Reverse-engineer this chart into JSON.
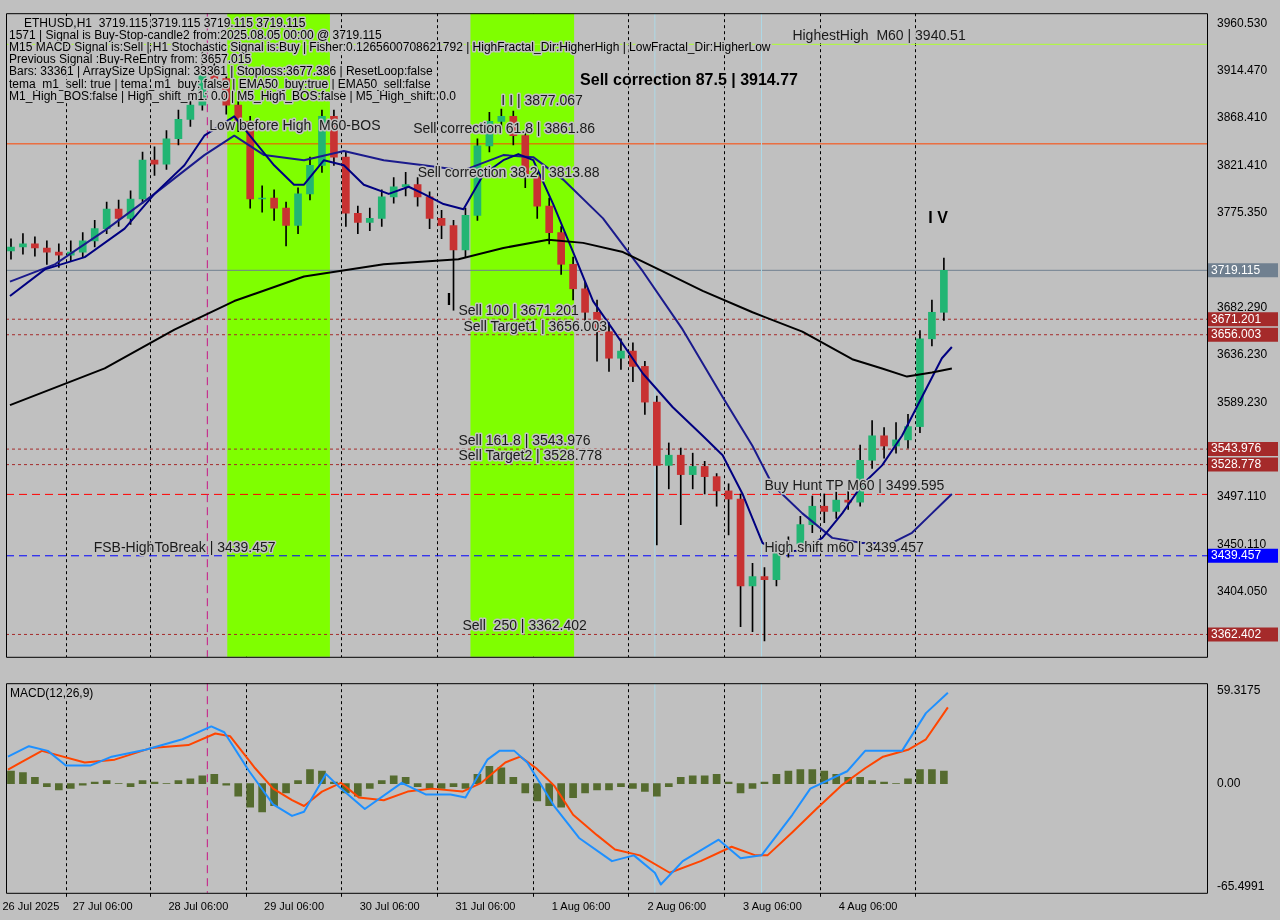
{
  "chart_data": [
    {
      "type": "candlestick",
      "title": "ETHUSD,H1  3719.115 3719.115 3719.115 3719.115",
      "x": [
        "2025-07-26T07:00",
        "2025-07-26T10:00",
        "2025-07-26T13:00",
        "2025-07-26T16:00",
        "2025-07-26T19:00",
        "2025-07-26T22:00",
        "2025-07-27T01:00",
        "2025-07-27T04:00",
        "2025-07-27T07:00",
        "2025-07-27T10:00",
        "2025-07-27T13:00",
        "2025-07-27T16:00",
        "2025-07-27T19:00",
        "2025-07-27T22:00",
        "2025-07-28T01:00",
        "2025-07-28T04:00",
        "2025-07-28T07:00",
        "2025-07-28T10:00",
        "2025-07-28T13:00",
        "2025-07-28T16:00",
        "2025-07-28T19:00",
        "2025-07-28T22:00",
        "2025-07-29T01:00",
        "2025-07-29T04:00",
        "2025-07-29T07:00",
        "2025-07-29T10:00",
        "2025-07-29T13:00",
        "2025-07-29T16:00",
        "2025-07-29T19:00",
        "2025-07-29T22:00",
        "2025-07-30T01:00",
        "2025-07-30T04:00",
        "2025-07-30T07:00",
        "2025-07-30T10:00",
        "2025-07-30T13:00",
        "2025-07-30T16:00",
        "2025-07-30T19:00",
        "2025-07-30T22:00",
        "2025-07-31T01:00",
        "2025-07-31T04:00",
        "2025-07-31T07:00",
        "2025-07-31T10:00",
        "2025-07-31T13:00",
        "2025-07-31T16:00",
        "2025-07-31T19:00",
        "2025-07-31T22:00",
        "2025-08-01T01:00",
        "2025-08-01T04:00",
        "2025-08-01T07:00",
        "2025-08-01T10:00",
        "2025-08-01T13:00",
        "2025-08-01T16:00",
        "2025-08-01T19:00",
        "2025-08-01T22:00",
        "2025-08-02T01:00",
        "2025-08-02T04:00",
        "2025-08-02T07:00",
        "2025-08-02T10:00",
        "2025-08-02T13:00",
        "2025-08-02T16:00",
        "2025-08-02T19:00",
        "2025-08-02T22:00",
        "2025-08-03T01:00",
        "2025-08-03T04:00",
        "2025-08-03T07:00",
        "2025-08-03T10:00",
        "2025-08-03T13:00",
        "2025-08-03T16:00",
        "2025-08-03T19:00",
        "2025-08-03T22:00",
        "2025-08-04T01:00",
        "2025-08-04T04:00",
        "2025-08-04T07:00",
        "2025-08-04T10:00",
        "2025-08-04T13:00",
        "2025-08-04T16:00",
        "2025-08-04T19:00",
        "2025-08-04T22:00",
        "2025-08-05T01:00"
      ],
      "ohlc": [
        [
          3738,
          3750,
          3730,
          3742
        ],
        [
          3742,
          3755,
          3735,
          3745
        ],
        [
          3745,
          3752,
          3733,
          3741
        ],
        [
          3741,
          3748,
          3725,
          3737
        ],
        [
          3737,
          3745,
          3722,
          3734
        ],
        [
          3734,
          3748,
          3728,
          3737
        ],
        [
          3737,
          3756,
          3732,
          3748
        ],
        [
          3748,
          3768,
          3742,
          3760
        ],
        [
          3760,
          3786,
          3755,
          3779
        ],
        [
          3779,
          3788,
          3762,
          3770
        ],
        [
          3770,
          3797,
          3764,
          3789
        ],
        [
          3789,
          3835,
          3785,
          3827
        ],
        [
          3827,
          3840,
          3812,
          3823
        ],
        [
          3823,
          3856,
          3818,
          3848
        ],
        [
          3848,
          3876,
          3842,
          3867
        ],
        [
          3867,
          3892,
          3860,
          3881
        ],
        [
          3881,
          3940.51,
          3876,
          3912
        ],
        [
          3912,
          3925,
          3895,
          3907
        ],
        [
          3907,
          3912,
          3872,
          3881
        ],
        [
          3881,
          3888,
          3855,
          3865
        ],
        [
          3865,
          3870,
          3780,
          3789
        ],
        [
          3789,
          3802,
          3776,
          3790
        ],
        [
          3790,
          3798,
          3768,
          3780
        ],
        [
          3780,
          3786,
          3743,
          3763
        ],
        [
          3763,
          3800,
          3755,
          3794
        ],
        [
          3794,
          3830,
          3788,
          3822
        ],
        [
          3822,
          3876,
          3815,
          3870
        ],
        [
          3870,
          3876,
          3822,
          3830
        ],
        [
          3830,
          3835,
          3762,
          3775
        ],
        [
          3775,
          3782,
          3755,
          3766
        ],
        [
          3766,
          3780,
          3758,
          3770
        ],
        [
          3770,
          3798,
          3762,
          3791
        ],
        [
          3791,
          3810,
          3785,
          3801
        ],
        [
          3801,
          3815,
          3792,
          3803
        ],
        [
          3803,
          3810,
          3782,
          3791
        ],
        [
          3791,
          3796,
          3760,
          3770
        ],
        [
          3770,
          3778,
          3750,
          3763
        ],
        [
          3763,
          3768,
          3680,
          3739
        ],
        [
          3739,
          3780,
          3732,
          3773
        ],
        [
          3773,
          3848,
          3768,
          3841
        ],
        [
          3841,
          3874,
          3835,
          3865
        ],
        [
          3865,
          3877.067,
          3858,
          3870
        ],
        [
          3870,
          3875,
          3842,
          3851
        ],
        [
          3851,
          3856,
          3800,
          3811
        ],
        [
          3811,
          3818,
          3770,
          3782
        ],
        [
          3782,
          3790,
          3745,
          3756
        ],
        [
          3756,
          3762,
          3715,
          3725
        ],
        [
          3725,
          3732,
          3690,
          3701
        ],
        [
          3701,
          3708,
          3665,
          3678
        ],
        [
          3678,
          3690,
          3630,
          3659
        ],
        [
          3659,
          3668,
          3620,
          3633
        ],
        [
          3633,
          3652,
          3622,
          3640
        ],
        [
          3640,
          3648,
          3610,
          3625
        ],
        [
          3625,
          3630,
          3578,
          3590
        ],
        [
          3590,
          3596,
          3450,
          3528
        ],
        [
          3528,
          3550,
          3505,
          3538
        ],
        [
          3538,
          3545,
          3470,
          3519
        ],
        [
          3519,
          3540,
          3505,
          3527
        ],
        [
          3527,
          3532,
          3500,
          3517
        ],
        [
          3517,
          3520,
          3488,
          3503
        ],
        [
          3503,
          3510,
          3460,
          3495
        ],
        [
          3495,
          3500,
          3370,
          3410
        ],
        [
          3410,
          3432,
          3365,
          3419
        ],
        [
          3419,
          3428,
          3356,
          3416
        ],
        [
          3416,
          3452,
          3410,
          3447
        ],
        [
          3447,
          3458,
          3438,
          3451
        ],
        [
          3451,
          3478,
          3445,
          3470
        ],
        [
          3470,
          3498,
          3462,
          3488
        ],
        [
          3488,
          3500,
          3472,
          3483
        ],
        [
          3483,
          3502,
          3476,
          3494
        ],
        [
          3494,
          3505,
          3485,
          3492
        ],
        [
          3492,
          3548,
          3488,
          3533
        ],
        [
          3533,
          3572,
          3525,
          3557
        ],
        [
          3557,
          3565,
          3535,
          3547
        ],
        [
          3547,
          3570,
          3540,
          3553
        ],
        [
          3553,
          3578,
          3545,
          3566
        ],
        [
          3566,
          3660,
          3560,
          3652
        ],
        [
          3652,
          3690,
          3645,
          3678
        ],
        [
          3678,
          3731,
          3670,
          3719.115
        ]
      ],
      "colors": [
        "#22b573",
        "#22b573",
        "#c83232",
        "#c83232",
        "#c83232",
        "#22b573",
        "#22b573",
        "#22b573",
        "#22b573",
        "#c83232",
        "#22b573",
        "#22b573",
        "#c83232",
        "#22b573",
        "#22b573",
        "#22b573",
        "#22b573",
        "#c83232",
        "#c83232",
        "#c83232",
        "#c83232",
        "#22b573",
        "#c83232",
        "#c83232",
        "#22b573",
        "#22b573",
        "#22b573",
        "#c83232",
        "#c83232",
        "#c83232",
        "#22b573",
        "#22b573",
        "#22b573",
        "#22b573",
        "#c83232",
        "#c83232",
        "#c83232",
        "#c83232",
        "#22b573",
        "#22b573",
        "#22b573",
        "#22b573",
        "#c83232",
        "#c83232",
        "#c83232",
        "#c83232",
        "#c83232",
        "#c83232",
        "#c83232",
        "#c83232",
        "#c83232",
        "#22b573",
        "#c83232",
        "#c83232",
        "#c83232",
        "#22b573",
        "#c83232",
        "#22b573",
        "#c83232",
        "#c83232",
        "#c83232",
        "#c83232",
        "#22b573",
        "#c83232",
        "#22b573",
        "#22b573",
        "#22b573",
        "#22b573",
        "#c83232",
        "#22b573",
        "#c83232",
        "#22b573",
        "#22b573",
        "#c83232",
        "#22b573",
        "#22b573",
        "#22b573",
        "#22b573",
        "#22b573"
      ],
      "color": "#000000",
      "series": [
        {
          "type": "line",
          "color": "#000000",
          "x": [
            "2025-07-26T06:45",
            "2025-07-27T06:30",
            "2025-07-28T00:00",
            "2025-07-28T15:00",
            "2025-07-29T08:30",
            "2025-07-30T04:30",
            "2025-07-30T23:15",
            "2025-07-31T10:30",
            "2025-07-31T21:45",
            "2025-08-01T06:30",
            "2025-08-01T16:30",
            "2025-08-02T02:30",
            "2025-08-02T12:30",
            "2025-08-03T01:00",
            "2025-08-03T13:30",
            "2025-08-04T02:00",
            "2025-08-04T09:30",
            "2025-08-04T15:45",
            "2025-08-04T22:00",
            "2025-08-05T03:00"
          ],
          "values": [
            3587,
            3623,
            3661,
            3689,
            3713,
            3725,
            3730,
            3741,
            3749,
            3746,
            3737,
            3718,
            3699,
            3678,
            3659,
            3632,
            3623,
            3615,
            3619,
            3623
          ]
        },
        {
          "type": "line",
          "color": "#000080",
          "x": [
            "2025-07-26T06:45",
            "2025-07-26T15:30",
            "2025-07-27T01:30",
            "2025-07-27T11:30",
            "2025-07-27T19:00",
            "2025-07-28T02:30",
            "2025-07-28T07:30",
            "2025-07-28T15:00",
            "2025-07-28T20:00",
            "2025-07-29T01:00",
            "2025-07-29T06:00",
            "2025-07-29T08:30",
            "2025-07-29T13:30",
            "2025-07-29T18:30",
            "2025-07-29T23:30",
            "2025-07-30T05:45",
            "2025-07-30T10:45",
            "2025-07-30T14:30",
            "2025-07-30T19:30",
            "2025-07-31T00:30",
            "2025-07-31T05:30",
            "2025-07-31T10:30",
            "2025-07-31T14:15",
            "2025-07-31T18:00",
            "2025-07-31T23:00",
            "2025-08-01T04:00",
            "2025-08-01T09:00",
            "2025-08-01T14:00",
            "2025-08-01T21:30",
            "2025-08-02T05:00",
            "2025-08-02T12:30",
            "2025-08-02T17:30",
            "2025-08-02T22:30",
            "2025-08-03T03:30",
            "2025-08-03T08:30",
            "2025-08-03T13:30",
            "2025-08-03T18:30",
            "2025-08-03T23:30",
            "2025-08-04T04:30",
            "2025-08-04T09:30",
            "2025-08-04T14:30",
            "2025-08-04T19:30",
            "2025-08-05T00:30",
            "2025-08-05T03:00"
          ],
          "values": [
            3694,
            3720,
            3732,
            3760,
            3794,
            3822,
            3851,
            3870,
            3846,
            3822,
            3803,
            3803,
            3827,
            3822,
            3803,
            3794,
            3801,
            3794,
            3784,
            3779,
            3813,
            3827,
            3833,
            3827,
            3784,
            3737,
            3689,
            3661,
            3618,
            3585,
            3557,
            3538,
            3500,
            3452,
            3443,
            3445,
            3457,
            3481,
            3509,
            3528,
            3557,
            3595,
            3633,
            3644
          ]
        },
        {
          "type": "line",
          "color": "#1a1a8c",
          "x": [
            "2025-07-26T06:45",
            "2025-07-26T18:00",
            "2025-07-27T06:30",
            "2025-07-27T19:00",
            "2025-07-28T07:30",
            "2025-07-28T15:00",
            "2025-07-28T22:30",
            "2025-07-29T08:30",
            "2025-07-29T18:30",
            "2025-07-30T04:30",
            "2025-07-30T14:30",
            "2025-07-31T00:30",
            "2025-07-31T10:30",
            "2025-07-31T18:00",
            "2025-08-01T01:30",
            "2025-08-01T11:30",
            "2025-08-01T21:30",
            "2025-08-02T07:30",
            "2025-08-02T17:30",
            "2025-08-03T01:00",
            "2025-08-03T06:00",
            "2025-08-03T13:30",
            "2025-08-03T21:00",
            "2025-08-04T04:30",
            "2025-08-04T12:00",
            "2025-08-04T17:00",
            "2025-08-04T22:00",
            "2025-08-05T03:00"
          ],
          "values": [
            3708,
            3725,
            3758,
            3794,
            3832,
            3851,
            3832,
            3827,
            3836,
            3827,
            3822,
            3817,
            3832,
            3830,
            3808,
            3770,
            3718,
            3661,
            3595,
            3547,
            3509,
            3481,
            3457,
            3452,
            3452,
            3462,
            3481,
            3500
          ]
        }
      ],
      "xlim": [
        "2025-07-26T05:45",
        "2025-08-07T19:00"
      ],
      "ylim": [
        3340.5,
        3971
      ],
      "xticks": [
        {
          "value": "2025-07-26T12:00",
          "label": null
        },
        {
          "value": "2025-07-27T06:00",
          "label": null
        },
        {
          "value": "2025-07-28T06:00",
          "label": null
        },
        {
          "value": "2025-07-29T06:00",
          "label": null
        },
        {
          "value": "2025-07-30T06:00",
          "label": null
        },
        {
          "value": "2025-07-31T06:00",
          "label": null
        },
        {
          "value": "2025-08-01T06:00",
          "label": null
        },
        {
          "value": "2025-08-02T06:00",
          "label": null
        },
        {
          "value": "2025-08-03T06:00",
          "label": null
        },
        {
          "value": "2025-08-04T06:00",
          "label": null
        }
      ],
      "yticks": [
        {
          "value": 3960.53,
          "label": "3960.530"
        },
        {
          "value": 3914.47,
          "label": "3914.470"
        },
        {
          "value": 3868.41,
          "label": "3868.410"
        },
        {
          "value": 3821.41,
          "label": "3821.410"
        },
        {
          "value": 3775.35,
          "label": "3775.350"
        },
        {
          "value": 3682.29,
          "label": "3682.290"
        },
        {
          "value": 3636.23,
          "label": "3636.230"
        },
        {
          "value": 3589.23,
          "label": "3589.230"
        },
        {
          "value": 3497.11,
          "label": "3497.110"
        },
        {
          "value": 3450.11,
          "label": "3450.110"
        },
        {
          "value": 3404.05,
          "label": "3404.050"
        }
      ],
      "tick_labels": "y",
      "grid": "x",
      "bands": [
        {
          "axis": "x",
          "from": "2025-07-28T13:15",
          "to": "2025-07-29T15:00",
          "color": "#7fff00"
        },
        {
          "axis": "x",
          "from": "2025-07-31T02:15",
          "to": "2025-08-01T04:15",
          "color": "#7fff00"
        }
      ],
      "ref_lines": [
        {
          "axis": "y",
          "value": 3940.51,
          "color": "#adff2f",
          "line_style": "solid"
        },
        {
          "axis": "y",
          "value": 3843,
          "color": "#ff4500",
          "line_style": "solid"
        },
        {
          "axis": "y",
          "value": 3719.115,
          "label": "3719.115",
          "color": "#708090",
          "line_style": "solid"
        },
        {
          "axis": "y",
          "value": 3671.201,
          "label": "3671.201",
          "color": "#a52a2a",
          "line_style": "dotted"
        },
        {
          "axis": "y",
          "value": 3656.003,
          "label": "3656.003",
          "color": "#a52a2a",
          "line_style": "dotted"
        },
        {
          "axis": "y",
          "value": 3543.976,
          "label": "3543.976",
          "color": "#a52a2a",
          "line_style": "dotted"
        },
        {
          "axis": "y",
          "value": 3528.778,
          "label": "3528.778",
          "color": "#a52a2a",
          "line_style": "dotted"
        },
        {
          "axis": "y",
          "value": 3499.595,
          "color": "#ff0000",
          "line_style": "dashed"
        },
        {
          "axis": "y",
          "value": 3439.457,
          "label": "3439.457",
          "color": "#0000ff",
          "line_style": "dashed"
        },
        {
          "axis": "y",
          "value": 3362.402,
          "label": "3362.402",
          "color": "#a52a2a",
          "line_style": "dotted"
        },
        {
          "axis": "x",
          "value": "2025-07-28T08:15",
          "color": "#c71585",
          "line_style": "dashed"
        },
        {
          "axis": "x",
          "value": "2025-08-02T00:30",
          "color": "#add8e6",
          "line_style": "solid"
        },
        {
          "axis": "x",
          "value": "2025-08-03T03:15",
          "color": "#add8e6",
          "line_style": "solid"
        }
      ],
      "annotations": [
        "1571 | Signal is Buy-Stop-candle2 from:2025.08.05 00:00 @ 3719.115",
        "M15 MACD Signal is:Sell | H1 Stochastic Signal is:Buy | Fisher:0.1265600708621792 | HighFractal_Dir:HigherHigh | LowFractal_Dir:HigherLow",
        "Previous Signal :Buy-ReEntry from: 3657.015",
        "Bars: 33361 | ArraySize UpSignal: 33361 | Stoploss:3677.386 | ResetLoop:false",
        "tema_m1_sell: true | tema_m1_buy: false | EMA50_buy:true | EMA50_sell:false",
        "M1_High_BOS:false | High_shift_m1: 0.0 | M5_High_BOS:false | M5_High_shift: 0.0",
        "Sell correction 87.5 | 3914.77",
        "I V",
        "I",
        "Sell correction 61.8 | 3861.86",
        {
          "text": "HighestHigh  M60 | 3940.51",
          "x": "2025-08-03T11:00",
          "y": 3940.51
        },
        {
          "text": "I I | 3877.067",
          "x": "2025-07-31T10:00",
          "y": 3877.067
        },
        {
          "text": "Low before High  M60-BOS",
          "x": "2025-07-28T08:45",
          "y": 3853
        },
        {
          "text": "Sell correction 38.2 | 3813.88",
          "x": "2025-07-30T13:00",
          "y": 3806
        },
        {
          "text": "Sell 100 | 3671.201",
          "x": "2025-07-30T23:15",
          "y": 3671.201
        },
        {
          "text": "Sell Target1 | 3656.003",
          "x": "2025-07-31T00:30",
          "y": 3656.003
        },
        {
          "text": "Sell 161.8 | 3543.976",
          "x": "2025-07-30T23:15",
          "y": 3543.976
        },
        {
          "text": "Sell Target2 | 3528.778",
          "x": "2025-07-30T23:15",
          "y": 3528.778
        },
        {
          "text": "Sell  250 | 3362.402",
          "x": "2025-07-31T00:15",
          "y": 3362.402
        },
        {
          "text": "Buy Hunt TP M60 | 3499.595",
          "x": "2025-08-03T04:00",
          "y": 3499.595
        },
        {
          "text": "High shift m60 | 3439.457",
          "x": "2025-08-03T04:00",
          "y": 3439.457
        },
        {
          "text": "FSB-HighToBreak | 3439.457",
          "x": "2025-07-27T03:45",
          "y": 3439.457
        }
      ]
    },
    {
      "type": "bar",
      "title": "MACD(12,26,9)",
      "series": [
        {
          "type": "bar",
          "color": "#556b2f",
          "x": [
            "2025-07-26T07:00",
            "2025-07-26T10:00",
            "2025-07-26T13:00",
            "2025-07-26T16:00",
            "2025-07-26T19:00",
            "2025-07-26T22:00",
            "2025-07-27T01:00",
            "2025-07-27T04:00",
            "2025-07-27T07:00",
            "2025-07-27T10:00",
            "2025-07-27T13:00",
            "2025-07-27T16:00",
            "2025-07-27T19:00",
            "2025-07-27T22:00",
            "2025-07-28T01:00",
            "2025-07-28T04:00",
            "2025-07-28T07:00",
            "2025-07-28T10:00",
            "2025-07-28T13:00",
            "2025-07-28T16:00",
            "2025-07-28T19:00",
            "2025-07-28T22:00",
            "2025-07-29T01:00",
            "2025-07-29T04:00",
            "2025-07-29T07:00",
            "2025-07-29T10:00",
            "2025-07-29T13:00",
            "2025-07-29T16:00",
            "2025-07-29T19:00",
            "2025-07-29T22:00",
            "2025-07-30T01:00",
            "2025-07-30T04:00",
            "2025-07-30T07:00",
            "2025-07-30T10:00",
            "2025-07-30T13:00",
            "2025-07-30T16:00",
            "2025-07-30T19:00",
            "2025-07-30T22:00",
            "2025-07-31T01:00",
            "2025-07-31T04:00",
            "2025-07-31T07:00",
            "2025-07-31T10:00",
            "2025-07-31T13:00",
            "2025-07-31T16:00",
            "2025-07-31T19:00",
            "2025-07-31T22:00",
            "2025-08-01T01:00",
            "2025-08-01T04:00",
            "2025-08-01T07:00",
            "2025-08-01T10:00",
            "2025-08-01T13:00",
            "2025-08-01T16:00",
            "2025-08-01T19:00",
            "2025-08-01T22:00",
            "2025-08-02T01:00",
            "2025-08-02T04:00",
            "2025-08-02T07:00",
            "2025-08-02T10:00",
            "2025-08-02T13:00",
            "2025-08-02T16:00",
            "2025-08-02T19:00",
            "2025-08-02T22:00",
            "2025-08-03T01:00",
            "2025-08-03T04:00",
            "2025-08-03T07:00",
            "2025-08-03T10:00",
            "2025-08-03T13:00",
            "2025-08-03T16:00",
            "2025-08-03T19:00",
            "2025-08-03T22:00",
            "2025-08-04T01:00",
            "2025-08-04T04:00",
            "2025-08-04T07:00",
            "2025-08-04T10:00",
            "2025-08-04T13:00",
            "2025-08-04T16:00",
            "2025-08-04T19:00",
            "2025-08-04T22:00",
            "2025-08-05T01:00"
          ],
          "values": [
            8,
            7,
            4,
            -2,
            -4,
            -3,
            -1,
            1,
            2,
            0,
            -2,
            2,
            1,
            0,
            2,
            3,
            5,
            6,
            -1,
            -8,
            -15,
            -18,
            -14,
            -6,
            2,
            9,
            8,
            1,
            -6,
            -8,
            -3,
            2,
            5,
            4,
            -2,
            -3,
            -3,
            -2,
            -3,
            6,
            11,
            10,
            4,
            -6,
            -11,
            -14,
            -15,
            -9,
            -6,
            -4,
            -4,
            -2,
            -3,
            -5,
            -8,
            -2,
            4,
            5,
            5,
            6,
            1,
            -6,
            -3,
            1,
            6,
            8,
            9,
            9,
            8,
            6,
            4,
            4,
            2,
            1,
            0,
            3,
            9,
            9,
            8
          ]
        },
        {
          "type": "line",
          "color": "#1e90ff",
          "x": [
            "2025-07-26T06:15",
            "2025-07-26T11:30",
            "2025-07-26T16:15",
            "2025-07-26T20:45",
            "2025-07-27T03:00",
            "2025-07-27T08:15",
            "2025-07-27T16:45",
            "2025-07-28T02:00",
            "2025-07-28T09:15",
            "2025-07-28T12:30",
            "2025-07-28T18:45",
            "2025-07-29T00:45",
            "2025-07-29T05:30",
            "2025-07-29T08:30",
            "2025-07-29T14:00",
            "2025-07-29T17:00",
            "2025-07-29T23:45",
            "2025-07-30T09:00",
            "2025-07-30T15:00",
            "2025-07-30T21:15",
            "2025-07-31T01:00",
            "2025-07-31T06:30",
            "2025-07-31T09:30",
            "2025-07-31T13:15",
            "2025-07-31T16:30",
            "2025-07-31T23:15",
            "2025-08-01T05:30",
            "2025-08-01T13:45",
            "2025-08-01T19:15",
            "2025-08-02T00:30",
            "2025-08-02T02:00",
            "2025-08-02T07:30",
            "2025-08-02T16:30",
            "2025-08-02T22:00",
            "2025-08-03T03:15",
            "2025-08-03T11:00",
            "2025-08-03T15:30",
            "2025-08-04T00:45",
            "2025-08-04T05:15",
            "2025-08-04T14:30",
            "2025-08-04T20:30",
            "2025-08-05T02:00"
          ],
          "values": [
            17.2,
            23.9,
            20.9,
            11.6,
            11.6,
            17.2,
            21.6,
            28.3,
            36.5,
            32.8,
            7.9,
            -13.2,
            -20.6,
            -18,
            6.1,
            -1.3,
            -16.2,
            0.5,
            -6.9,
            -6.9,
            -8.8,
            15.3,
            20.9,
            20.9,
            13.5,
            -14.3,
            -34.7,
            -49.5,
            -45.8,
            -56.9,
            -64.4,
            -49.5,
            -35.8,
            -47.7,
            -45.8,
            -19.9,
            -3.2,
            7.9,
            20.9,
            20.9,
            45,
            58
          ]
        },
        {
          "type": "line",
          "color": "#ff4500",
          "x": [
            "2025-07-26T06:15",
            "2025-07-26T14:45",
            "2025-07-27T01:30",
            "2025-07-27T09:00",
            "2025-07-27T18:15",
            "2025-07-28T03:30",
            "2025-07-28T10:15",
            "2025-07-28T14:00",
            "2025-07-28T20:15",
            "2025-07-29T00:45",
            "2025-07-29T05:30",
            "2025-07-29T08:30",
            "2025-07-29T13:00",
            "2025-07-29T17:45",
            "2025-07-29T22:15",
            "2025-07-30T04:30",
            "2025-07-30T10:30",
            "2025-07-30T16:30",
            "2025-07-31T00:15",
            "2025-07-31T05:00",
            "2025-07-31T11:00",
            "2025-07-31T14:45",
            "2025-07-31T18:45",
            "2025-07-31T23:15",
            "2025-08-01T04:00",
            "2025-08-01T10:00",
            "2025-08-01T14:30",
            "2025-08-01T20:45",
            "2025-08-02T04:15",
            "2025-08-02T12:00",
            "2025-08-02T19:45",
            "2025-08-03T01:45",
            "2025-08-03T04:45",
            "2025-08-03T11:00",
            "2025-08-03T17:00",
            "2025-08-03T23:15",
            "2025-08-04T05:15",
            "2025-08-04T09:45",
            "2025-08-04T16:00",
            "2025-08-04T20:30",
            "2025-08-05T02:00"
          ],
          "values": [
            9,
            20.9,
            13.5,
            15.3,
            22.8,
            24.6,
            32,
            30.2,
            9.8,
            -3.2,
            -10.6,
            -14.3,
            -5.1,
            0.5,
            -8.8,
            -10.6,
            -5.1,
            -3.2,
            -5.1,
            0.5,
            13.5,
            17.2,
            9.8,
            -1.3,
            -19.9,
            -32.9,
            -42.1,
            -45.8,
            -56.9,
            -49.5,
            -40.3,
            -45.8,
            -45.8,
            -31,
            -16.2,
            -1.3,
            9.8,
            17.2,
            21.6,
            28.3,
            48.7
          ]
        }
      ],
      "xlim": [
        "2025-07-26T05:45",
        "2025-08-07T19:00"
      ],
      "ylim": [
        -69.7,
        64.1
      ],
      "xticks": [
        {
          "value": "2025-07-26T12:00",
          "label": "26 Jul 2025"
        },
        {
          "value": "2025-07-27T06:00",
          "label": "27 Jul 06:00"
        },
        {
          "value": "2025-07-28T06:00",
          "label": "28 Jul 06:00"
        },
        {
          "value": "2025-07-29T06:00",
          "label": "29 Jul 06:00"
        },
        {
          "value": "2025-07-30T06:00",
          "label": "30 Jul 06:00"
        },
        {
          "value": "2025-07-31T06:00",
          "label": "31 Jul 06:00"
        },
        {
          "value": "2025-08-01T06:00",
          "label": "1 Aug 06:00"
        },
        {
          "value": "2025-08-02T06:00",
          "label": "2 Aug 06:00"
        },
        {
          "value": "2025-08-03T06:00",
          "label": "3 Aug 06:00"
        },
        {
          "value": "2025-08-04T06:00",
          "label": "4 Aug 06:00"
        }
      ],
      "yticks": [
        59.3175,
        {
          "value": 0,
          "label": "0.00"
        },
        -65.4991
      ],
      "grid": "x",
      "ref_lines": [
        {
          "axis": "x",
          "value": "2025-07-28T08:15",
          "color": "#c71585",
          "line_style": "dashed"
        },
        {
          "axis": "x",
          "value": "2025-08-02T00:30",
          "color": "#add8e6",
          "line_style": "solid"
        },
        {
          "axis": "x",
          "value": "2025-08-03T03:15",
          "color": "#add8e6",
          "line_style": "solid"
        }
      ]
    }
  ]
}
